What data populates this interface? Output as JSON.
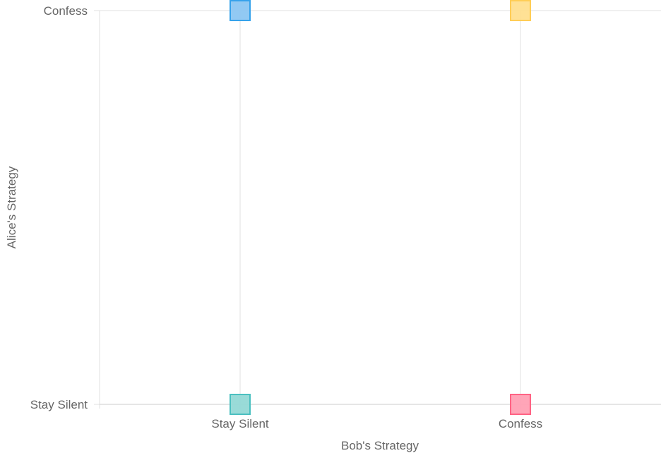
{
  "chart_data": {
    "type": "scatter",
    "xlabel": "Bob's Strategy",
    "ylabel": "Alice's Strategy",
    "x_categories": [
      "Stay Silent",
      "Confess"
    ],
    "y_categories": [
      "Stay Silent",
      "Confess"
    ],
    "grid": true,
    "legend": "none",
    "point_style": "square",
    "points": [
      {
        "x": "Stay Silent",
        "y": "Confess",
        "fill": "#8cc6f2",
        "stroke": "#36a2eb"
      },
      {
        "x": "Confess",
        "y": "Confess",
        "fill": "#ffdf8f",
        "stroke": "#ffcd56"
      },
      {
        "x": "Stay Silent",
        "y": "Stay Silent",
        "fill": "#94d9d6",
        "stroke": "#4bc0c0"
      },
      {
        "x": "Confess",
        "y": "Stay Silent",
        "fill": "#ffa0b4",
        "stroke": "#ff6384"
      }
    ]
  }
}
